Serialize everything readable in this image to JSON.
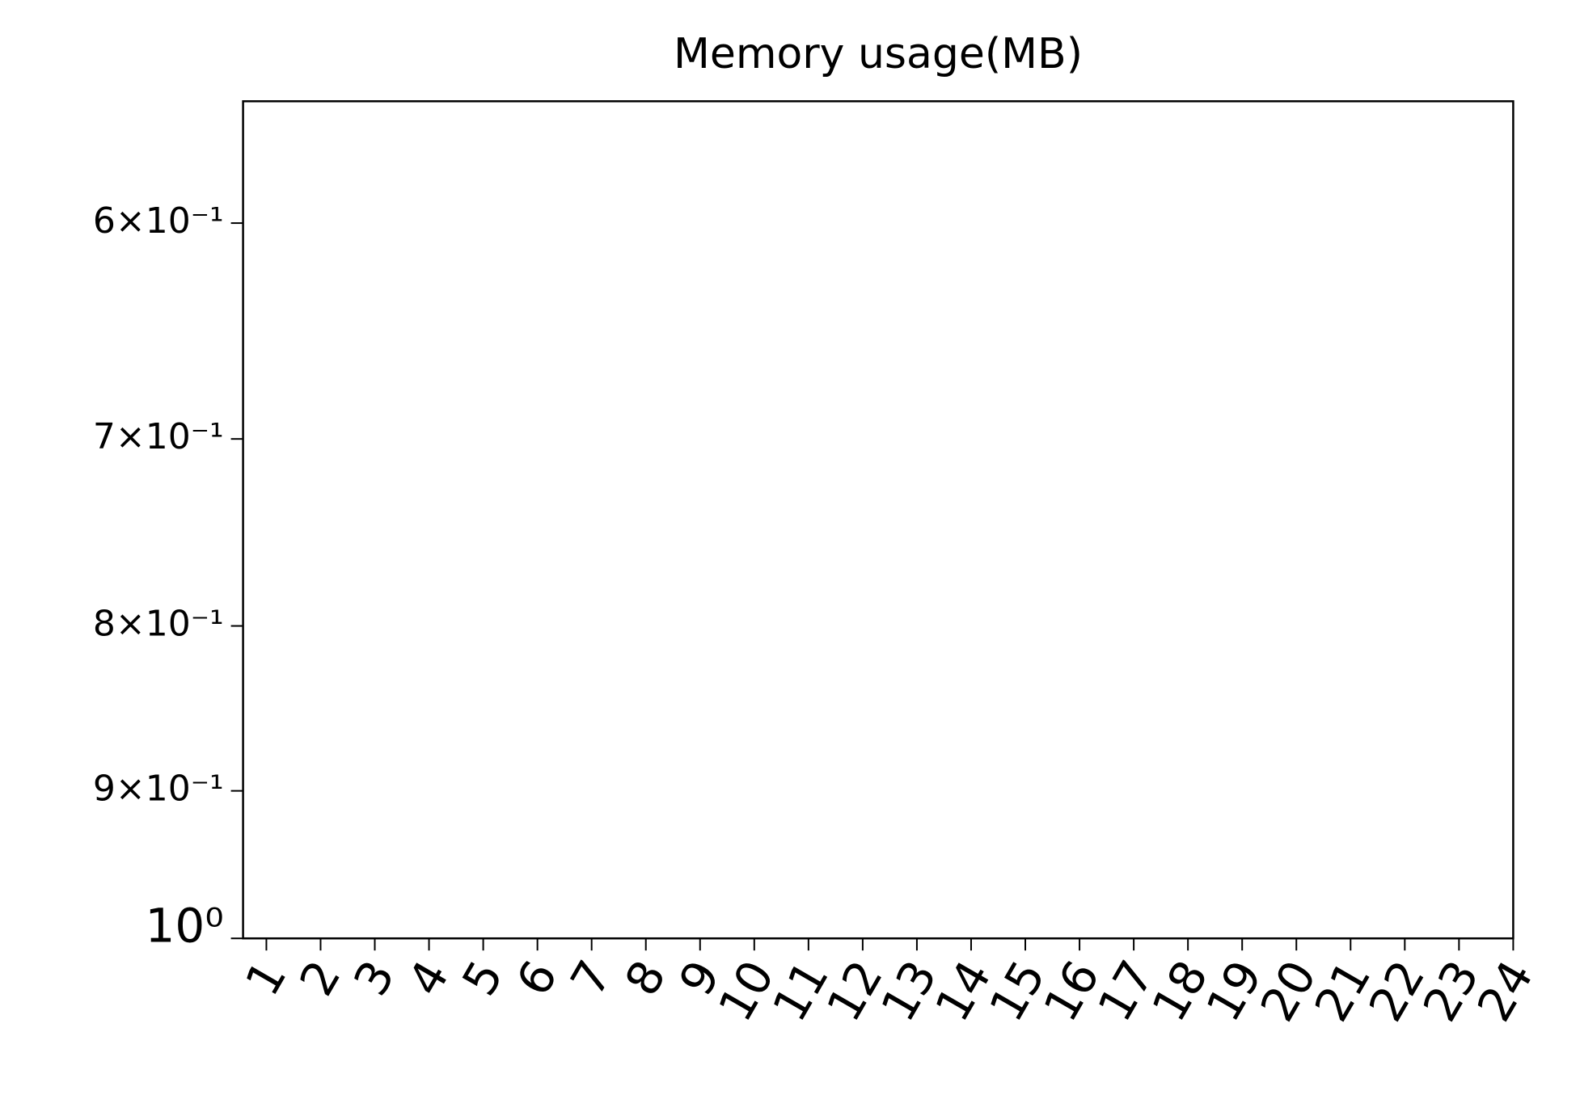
{
  "chart_data": {
    "type": "line",
    "title": "Memory usage(MB)",
    "x": [
      1,
      2,
      3,
      4,
      5,
      6,
      7,
      8,
      9,
      10,
      11,
      12,
      13,
      14,
      15,
      16,
      17,
      18,
      19,
      20,
      21,
      22,
      23,
      24
    ],
    "xlim": [
      0.57,
      24
    ],
    "xticks": [
      1,
      2,
      3,
      4,
      5,
      6,
      7,
      8,
      9,
      10,
      11,
      12,
      13,
      14,
      15,
      16,
      17,
      18,
      19,
      20,
      21,
      22,
      23,
      24
    ],
    "ylim": [
      1,
      0.55
    ],
    "yscale": "log",
    "yticks": [
      {
        "value": 0.6,
        "label": "6×10⁻¹"
      },
      {
        "value": 0.7,
        "label": "7×10⁻¹"
      },
      {
        "value": 0.8,
        "label": "8×10⁻¹"
      },
      {
        "value": 0.9,
        "label": "9×10⁻¹"
      },
      {
        "value": 1,
        "label": "10⁰"
      }
    ],
    "grid": false,
    "series": []
  }
}
